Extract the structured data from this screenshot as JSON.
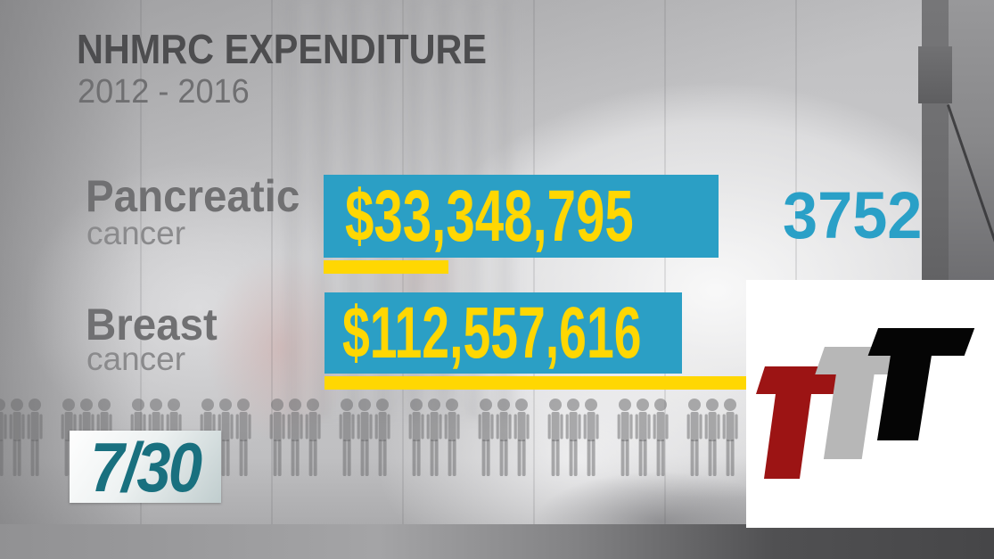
{
  "title": {
    "line1": "NHMRC EXPENDITURE",
    "line2": "2012 - 2016"
  },
  "rows": [
    {
      "label": "Pancreatic",
      "sublabel": "cancer",
      "amount": "$33,348,795",
      "count": "3752"
    },
    {
      "label": "Breast",
      "sublabel": "cancer",
      "amount": "$112,557,616"
    }
  ],
  "colors": {
    "bar_blue": "#2b9fc5",
    "accent_yellow": "#ffd702",
    "count_blue": "#2aa0c7",
    "label_gray": "#707072",
    "teal_730": "#19707f",
    "ttt_red": "#9c1414",
    "ttt_gray": "#b7b7b7",
    "ttt_black": "#050505"
  },
  "people_row": {
    "groups": 15,
    "persons_per_group": 3,
    "icon": "person-icon"
  },
  "logos": {
    "program": {
      "text": "7/30"
    },
    "ttt": {
      "letters": "TTT"
    }
  },
  "chart_data": {
    "type": "bar",
    "orientation": "horizontal",
    "title": "NHMRC EXPENDITURE",
    "subtitle": "2012 - 2016",
    "categories": [
      "Pancreatic cancer",
      "Breast cancer"
    ],
    "series": [
      {
        "name": "NHMRC expenditure 2012-2016 (AUD)",
        "values": [
          33348795,
          112557616
        ]
      }
    ],
    "value_labels": [
      "$33,348,795",
      "$112,557,616"
    ],
    "annotations": [
      {
        "category": "Pancreatic cancer",
        "text": "3752"
      }
    ],
    "legend": false,
    "grid": false
  }
}
